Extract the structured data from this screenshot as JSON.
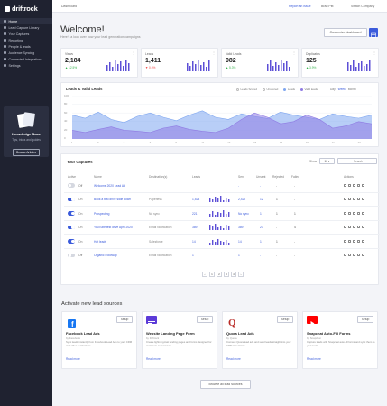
{
  "app": {
    "brand": "driftrock"
  },
  "sidebar": {
    "items": [
      {
        "label": "Home"
      },
      {
        "label": "Lead Capture Library"
      },
      {
        "label": "Your Captures"
      },
      {
        "label": "Reporting"
      },
      {
        "label": "People & leads"
      },
      {
        "label": "Audience Syncing"
      },
      {
        "label": "Connected Integrations"
      },
      {
        "label": "Settings"
      }
    ],
    "knowledge": {
      "title": "Knowledge Base",
      "subtitle": "Tips, tricks and guides",
      "button": "Browse Articles"
    }
  },
  "topbar": {
    "page": "Dashboard",
    "report": "Report an issue",
    "user": "Brad Pitt",
    "company": "Switch Company"
  },
  "header": {
    "title": "Welcome!",
    "subtitle": "Here's a look over how your lead generation campaigns",
    "customize_label": "Customize dashboard"
  },
  "stats": [
    {
      "label": "Views",
      "value": "2,184",
      "change": "▲ 12.5%"
    },
    {
      "label": "Leads",
      "value": "1,411",
      "change": "▼ 0.6%"
    },
    {
      "label": "Valid Leads",
      "value": "982",
      "change": "▲ 5.3%"
    },
    {
      "label": "Duplicates",
      "value": "125",
      "change": "▲ 3.9%"
    }
  ],
  "chart": {
    "title": "Leads & Valid Leads",
    "legend": [
      "Leads Scored",
      "Unscored",
      "Leads",
      "Valid leads"
    ],
    "ranges": [
      "Day",
      "Week",
      "Month"
    ],
    "colors": {
      "leads": "#7ea6f0",
      "valid": "#8f7be3"
    }
  },
  "chart_data": {
    "type": "area",
    "title": "Leads & Valid Leads",
    "x": [
      "1",
      "2",
      "3",
      "4",
      "5",
      "6",
      "7",
      "8",
      "9",
      "10",
      "11",
      "12",
      "13",
      "14",
      "15",
      "16",
      "17",
      "18",
      "19",
      "20",
      "21",
      "22",
      "23",
      "24"
    ],
    "ylim": [
      0,
      100
    ],
    "yticks": [
      "100",
      "80",
      "60",
      "40",
      "20",
      "0"
    ],
    "series": [
      {
        "name": "Leads",
        "values": [
          55,
          48,
          62,
          45,
          38,
          52,
          60,
          50,
          42,
          55,
          65,
          50,
          45,
          58,
          52,
          47,
          62,
          55,
          50,
          45,
          58,
          52,
          48,
          55
        ]
      },
      {
        "name": "Valid leads",
        "values": [
          20,
          15,
          22,
          28,
          20,
          18,
          15,
          25,
          30,
          22,
          18,
          15,
          25,
          45,
          60,
          50,
          35,
          40,
          55,
          45,
          25,
          30,
          40,
          35
        ]
      }
    ],
    "grid": true,
    "legend_position": "top-right"
  },
  "captures": {
    "title": "Your Captures",
    "show_label": "Show",
    "show_value": "10",
    "search_placeholder": "Search",
    "headers": {
      "active": "Active",
      "name": "Name",
      "destination": "Destination(s)",
      "leads": "Leads",
      "sent": "Sent",
      "unsent": "Unsent",
      "rejected": "Rejected",
      "failed": "Failed",
      "actions": "Actions"
    },
    "rows": [
      {
        "on": false,
        "state": "Off",
        "name": "Welcome 2020 Lead Ad",
        "dest": "",
        "leads": "",
        "sent": "-",
        "unsent": "-",
        "rejected": "-",
        "failed": "-"
      },
      {
        "on": true,
        "state": "On",
        "name": "Book a test drive slide down",
        "dest": "Paperless",
        "leads": "1,523",
        "sent": "2,422",
        "unsent": "12",
        "rejected": "1",
        "failed": "-"
      },
      {
        "on": true,
        "state": "On",
        "name": "Prospecting",
        "dest": "No sync",
        "leads": "221",
        "sent": "No sync",
        "unsent": "1",
        "rejected": "1",
        "failed": "1"
      },
      {
        "on": true,
        "state": "On",
        "name": "YouTube test drive April 2020",
        "dest": "Email Notification",
        "leads": "389",
        "sent": "389",
        "unsent": "23",
        "rejected": "-",
        "failed": "4"
      },
      {
        "on": true,
        "state": "On",
        "name": "Hot leads",
        "dest": "Salesforce",
        "leads": "14",
        "sent": "14",
        "unsent": "1",
        "rejected": "1",
        "failed": "-"
      },
      {
        "on": false,
        "state": "Off",
        "name": "Organic Followup",
        "dest": "Email Notification",
        "leads": "1",
        "sent": "1",
        "unsent": "-",
        "rejected": "-",
        "failed": "-"
      }
    ],
    "pages": [
      "‹",
      "1",
      "2",
      "3",
      "4",
      "›"
    ]
  },
  "sources": {
    "title": "Activate new lead sources",
    "setup_label": "Setup",
    "more_label": "Read more",
    "browse_label": "Browse all lead sources",
    "items": [
      {
        "name": "Facebook Lead Ads",
        "by": "by Facebook",
        "desc": "Sync leads instantly from Facebook Lead Ads to your CRM and other destinations."
      },
      {
        "name": "Website Landing Page Form",
        "by": "by Driftrock",
        "desc": "Create lightning-fast landing pages and forms designed for maximum conversions."
      },
      {
        "name": "Quora Lead Ads",
        "by": "by Quora",
        "desc": "Connect Quora lead ads and send leads straight into your CRM in real time."
      },
      {
        "name": "Snapchat Auto-Fill Forms",
        "by": "by Snapchat",
        "desc": "Capture leads with Snapchat auto-fill forms and sync them to your tools."
      }
    ]
  }
}
